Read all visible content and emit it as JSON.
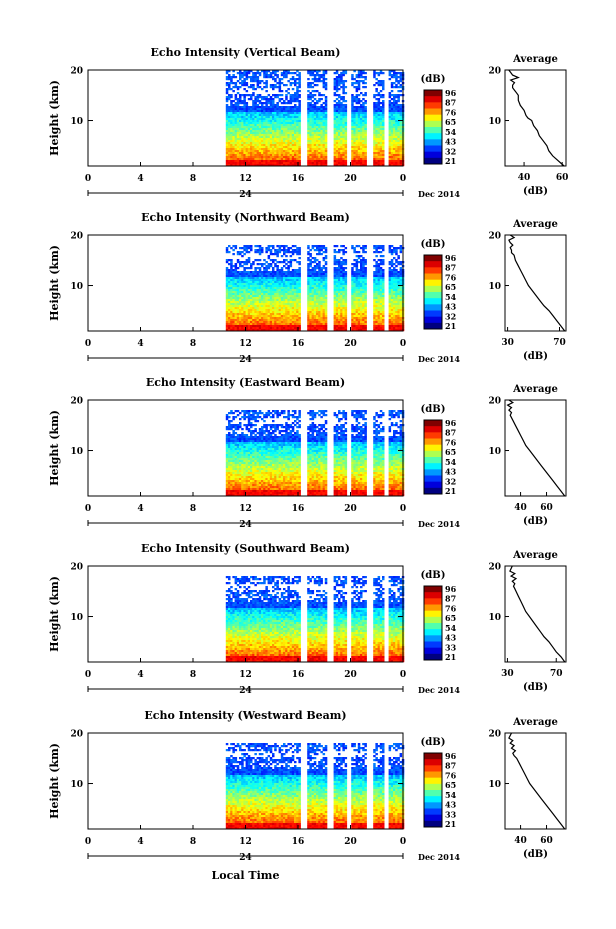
{
  "figure": {
    "date_label": "Dec 2014",
    "day_label": "24",
    "xlabel": "Local Time",
    "x_ticks": [
      "0",
      "4",
      "8",
      "12",
      "16",
      "20",
      "0"
    ],
    "colorbar_unit": "(dB)",
    "avg_title": "Average",
    "avg_xlabel": "(dB)"
  },
  "chart_data": [
    {
      "type": "heatmap",
      "title": "Echo Intensity (Vertical Beam)",
      "ylabel": "Height (km)",
      "y_ticks": [
        "20",
        "10"
      ],
      "xlim": [
        0,
        24
      ],
      "ylim": [
        1,
        20
      ],
      "colorbar_ticks": [
        "96",
        "87",
        "76",
        "65",
        "54",
        "43",
        "32",
        "21"
      ],
      "data_start_hour": 10.5,
      "profile": {
        "type": "line",
        "xticks": [
          "40",
          "60"
        ],
        "xlim": [
          30,
          62
        ],
        "x": [
          61,
          58,
          55,
          53,
          52,
          50,
          48,
          47,
          45,
          44,
          42,
          41,
          40,
          39,
          38,
          37,
          37,
          36,
          35,
          34,
          34,
          35,
          33,
          37,
          34,
          33,
          32
        ],
        "y": [
          1,
          2,
          3,
          4,
          5,
          6,
          7,
          8,
          9,
          10,
          10.5,
          11,
          12,
          12.5,
          13,
          14,
          15,
          15.5,
          16,
          16.5,
          17,
          17.5,
          18,
          18.5,
          19,
          19.5,
          20
        ]
      }
    },
    {
      "type": "heatmap",
      "title": "Echo Intensity (Northward Beam)",
      "ylabel": "Height (km)",
      "y_ticks": [
        "20",
        "10"
      ],
      "xlim": [
        0,
        24
      ],
      "ylim": [
        1,
        20
      ],
      "colorbar_ticks": [
        "96",
        "87",
        "76",
        "65",
        "54",
        "43",
        "32",
        "21"
      ],
      "data_start_hour": 10.5,
      "profile": {
        "type": "line",
        "xticks": [
          "30",
          "70"
        ],
        "xlim": [
          28,
          75
        ],
        "x": [
          74,
          71,
          68,
          65,
          62,
          58,
          55,
          52,
          49,
          46,
          44,
          42,
          40,
          38,
          36,
          35,
          33,
          33,
          32,
          34,
          32,
          31,
          35,
          32
        ],
        "y": [
          1,
          2,
          3,
          4,
          5,
          6,
          7,
          8,
          9,
          10,
          11,
          12,
          13,
          14,
          15,
          16,
          16.5,
          17,
          17.5,
          18,
          18.5,
          19,
          19.5,
          20
        ]
      }
    },
    {
      "type": "heatmap",
      "title": "Echo Intensity (Eastward Beam)",
      "ylabel": "Height (km)",
      "y_ticks": [
        "20",
        "10"
      ],
      "xlim": [
        0,
        24
      ],
      "ylim": [
        1,
        20
      ],
      "colorbar_ticks": [
        "96",
        "87",
        "76",
        "65",
        "54",
        "43",
        "32",
        "21"
      ],
      "data_start_hour": 10.5,
      "profile": {
        "type": "line",
        "xticks": [
          "40",
          "60"
        ],
        "xlim": [
          28,
          75
        ],
        "x": [
          74,
          71,
          68,
          65,
          62,
          59,
          56,
          53,
          50,
          47,
          44,
          42,
          40,
          38,
          36,
          34,
          33,
          32,
          33,
          31,
          33,
          30,
          34,
          31
        ],
        "y": [
          1,
          2,
          3,
          4,
          5,
          6,
          7,
          8,
          9,
          10,
          11,
          12,
          13,
          14,
          15,
          16,
          16.5,
          17,
          17.5,
          18,
          18.5,
          19,
          19.5,
          20
        ]
      }
    },
    {
      "type": "heatmap",
      "title": "Echo Intensity (Southward Beam)",
      "ylabel": "Height (km)",
      "y_ticks": [
        "20",
        "10"
      ],
      "xlim": [
        0,
        24
      ],
      "ylim": [
        1,
        20
      ],
      "colorbar_ticks": [
        "96",
        "87",
        "76",
        "65",
        "54",
        "43",
        "33",
        "21"
      ],
      "data_start_hour": 10.5,
      "profile": {
        "type": "line",
        "xticks": [
          "30",
          "70"
        ],
        "xlim": [
          28,
          78
        ],
        "x": [
          77,
          74,
          70,
          67,
          64,
          60,
          57,
          54,
          51,
          48,
          45,
          43,
          41,
          39,
          37,
          36,
          35,
          36,
          34,
          37,
          33,
          36,
          32,
          34
        ],
        "y": [
          1,
          2,
          3,
          4,
          5,
          6,
          7,
          8,
          9,
          10,
          11,
          12,
          13,
          14,
          15,
          15.5,
          16,
          16.5,
          17,
          17.5,
          18,
          18.5,
          19,
          20
        ]
      }
    },
    {
      "type": "heatmap",
      "title": "Echo Intensity (Westward Beam)",
      "ylabel": "Height (km)",
      "y_ticks": [
        "20",
        "10"
      ],
      "xlim": [
        0,
        24
      ],
      "ylim": [
        1,
        20
      ],
      "colorbar_ticks": [
        "96",
        "87",
        "76",
        "65",
        "54",
        "43",
        "33",
        "21"
      ],
      "data_start_hour": 10.5,
      "profile": {
        "type": "line",
        "xticks": [
          "40",
          "60"
        ],
        "xlim": [
          28,
          75
        ],
        "x": [
          74,
          71,
          68,
          65,
          62,
          59,
          56,
          53,
          50,
          47,
          45,
          43,
          41,
          39,
          37,
          35,
          34,
          36,
          33,
          35,
          32,
          34,
          31,
          33
        ],
        "y": [
          1,
          2,
          3,
          4,
          5,
          6,
          7,
          8,
          9,
          10,
          11,
          12,
          13,
          14,
          15,
          15.5,
          16,
          16.5,
          17,
          17.5,
          18,
          18.5,
          19,
          20
        ]
      }
    }
  ]
}
